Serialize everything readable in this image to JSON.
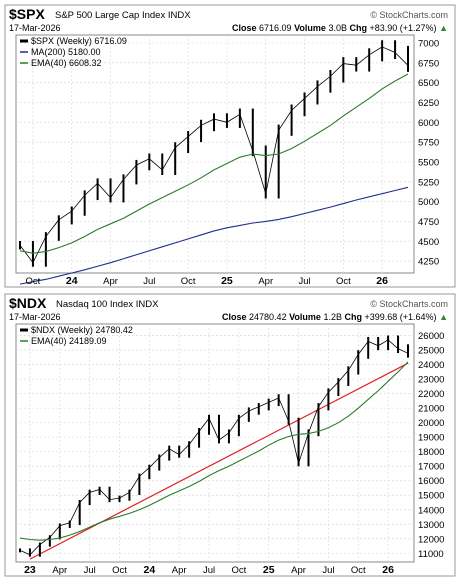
{
  "charts": [
    {
      "symbol": "$SPX",
      "name": "S&P 500 Large Cap Index",
      "exchange": "INDX",
      "watermark": "© StockCharts.com",
      "date": "17-Mar-2026",
      "close_label": "Close",
      "close_value": "6716.09",
      "volume_label": "Volume",
      "volume_value": "3.0B",
      "chg_label": "Chg",
      "chg_value": "+83.90 (+1.27%)",
      "chg_arrow": "▲",
      "legend": [
        {
          "label": "$SPX (Weekly) 6716.09",
          "color": "#000000",
          "kind": "bars"
        },
        {
          "label": "MA(200) 5180.00",
          "color": "#1f2f8f",
          "kind": "line"
        },
        {
          "label": "EMA(40) 6608.32",
          "color": "#2a7d2a",
          "kind": "line"
        }
      ],
      "y_ticks": [
        "4250",
        "4500",
        "4750",
        "5000",
        "5250",
        "5500",
        "5750",
        "6000",
        "6250",
        "6500",
        "6750",
        "7000"
      ],
      "x_ticks": [
        "Oct",
        "24",
        "Apr",
        "Jul",
        "Oct",
        "25",
        "Apr",
        "Jul",
        "Oct",
        "26"
      ]
    },
    {
      "symbol": "$NDX",
      "name": "Nasdaq 100 Index",
      "exchange": "INDX",
      "watermark": "© StockCharts.com",
      "date": "17-Mar-2026",
      "close_label": "Close",
      "close_value": "24780.42",
      "volume_label": "Volume",
      "volume_value": "1.2B",
      "chg_label": "Chg",
      "chg_value": "+399.68 (+1.64%)",
      "chg_arrow": "▲",
      "legend": [
        {
          "label": "$NDX (Weekly) 24780.42",
          "color": "#000000",
          "kind": "bars"
        },
        {
          "label": "EMA(40) 24189.09",
          "color": "#2a7d2a",
          "kind": "line"
        }
      ],
      "y_ticks": [
        "11000",
        "12000",
        "13000",
        "14000",
        "15000",
        "16000",
        "17000",
        "18000",
        "19000",
        "20000",
        "21000",
        "22000",
        "23000",
        "24000",
        "25000",
        "26000"
      ],
      "x_ticks": [
        "23",
        "Apr",
        "Jul",
        "Oct",
        "24",
        "Apr",
        "Jul",
        "Oct",
        "25",
        "Apr",
        "Jul",
        "Oct",
        "26"
      ]
    }
  ],
  "chart_data": [
    {
      "type": "line",
      "title": "$SPX S&P 500 Large Cap Index INDX",
      "scale": "weekly",
      "x": [
        "2023-09",
        "2023-10",
        "2023-11",
        "2023-12",
        "2024-01",
        "2024-02",
        "2024-03",
        "2024-04",
        "2024-05",
        "2024-06",
        "2024-07",
        "2024-08",
        "2024-09",
        "2024-10",
        "2024-11",
        "2024-12",
        "2025-01",
        "2025-02",
        "2025-03",
        "2025-04",
        "2025-05",
        "2025-06",
        "2025-07",
        "2025-08",
        "2025-09",
        "2025-10",
        "2025-11",
        "2025-12",
        "2026-01",
        "2026-02",
        "2026-03"
      ],
      "series": [
        {
          "name": "$SPX",
          "values": [
            4450,
            4230,
            4560,
            4770,
            4880,
            5080,
            5230,
            5050,
            5280,
            5460,
            5540,
            5400,
            5680,
            5820,
            5960,
            6040,
            6000,
            6100,
            5640,
            5100,
            5900,
            6150,
            6300,
            6450,
            6580,
            6740,
            6720,
            6850,
            6950,
            6880,
            6716
          ]
        },
        {
          "name": "MA(200)",
          "values": [
            3960,
            3990,
            4020,
            4060,
            4100,
            4140,
            4185,
            4230,
            4280,
            4330,
            4380,
            4430,
            4480,
            4530,
            4580,
            4630,
            4670,
            4700,
            4730,
            4750,
            4775,
            4810,
            4850,
            4890,
            4930,
            4975,
            5020,
            5060,
            5100,
            5140,
            5180
          ]
        },
        {
          "name": "EMA(40)",
          "values": [
            4380,
            4350,
            4370,
            4420,
            4480,
            4560,
            4650,
            4720,
            4790,
            4880,
            4970,
            5050,
            5130,
            5210,
            5300,
            5400,
            5480,
            5560,
            5600,
            5580,
            5600,
            5670,
            5760,
            5860,
            5960,
            6080,
            6190,
            6300,
            6420,
            6520,
            6608
          ]
        }
      ],
      "ylim": [
        4100,
        7100
      ],
      "y_ticks": [
        4250,
        4500,
        4750,
        5000,
        5250,
        5500,
        5750,
        6000,
        6250,
        6500,
        6750,
        7000
      ]
    },
    {
      "type": "line",
      "title": "$NDX Nasdaq 100 Index INDX",
      "scale": "weekly",
      "x": [
        "2022-12",
        "2023-01",
        "2023-02",
        "2023-03",
        "2023-04",
        "2023-05",
        "2023-06",
        "2023-07",
        "2023-08",
        "2023-09",
        "2023-10",
        "2023-11",
        "2023-12",
        "2024-01",
        "2024-02",
        "2024-03",
        "2024-04",
        "2024-05",
        "2024-06",
        "2024-07",
        "2024-08",
        "2024-09",
        "2024-10",
        "2024-11",
        "2024-12",
        "2025-01",
        "2025-02",
        "2025-03",
        "2025-04",
        "2025-05",
        "2025-06",
        "2025-07",
        "2025-08",
        "2025-09",
        "2025-10",
        "2025-11",
        "2025-12",
        "2026-01",
        "2026-02",
        "2026-03"
      ],
      "series": [
        {
          "name": "$NDX",
          "values": [
            11200,
            10900,
            11600,
            12100,
            12900,
            13100,
            14500,
            15200,
            15400,
            14700,
            14800,
            15200,
            16300,
            16900,
            17600,
            18200,
            17800,
            18500,
            19400,
            20300,
            18800,
            19300,
            20300,
            20800,
            21100,
            21400,
            21700,
            20100,
            17200,
            19300,
            21100,
            22100,
            22800,
            23600,
            24700,
            25600,
            25300,
            25700,
            25100,
            24780
          ]
        },
        {
          "name": "EMA(40)",
          "values": [
            12050,
            11950,
            11900,
            11950,
            12050,
            12250,
            12500,
            12800,
            13100,
            13350,
            13550,
            13750,
            14000,
            14300,
            14650,
            15000,
            15300,
            15600,
            15950,
            16350,
            16700,
            17000,
            17350,
            17700,
            18050,
            18450,
            18800,
            19050,
            19200,
            19250,
            19400,
            19650,
            20000,
            20450,
            21000,
            21600,
            22200,
            22850,
            23500,
            24189
          ]
        }
      ],
      "trendline": {
        "from": [
          "2023-01",
          10600
        ],
        "to": [
          "2026-03",
          24100
        ]
      },
      "ylim": [
        10400,
        26800
      ],
      "y_ticks": [
        11000,
        12000,
        13000,
        14000,
        15000,
        16000,
        17000,
        18000,
        19000,
        20000,
        21000,
        22000,
        23000,
        24000,
        25000,
        26000
      ]
    }
  ]
}
